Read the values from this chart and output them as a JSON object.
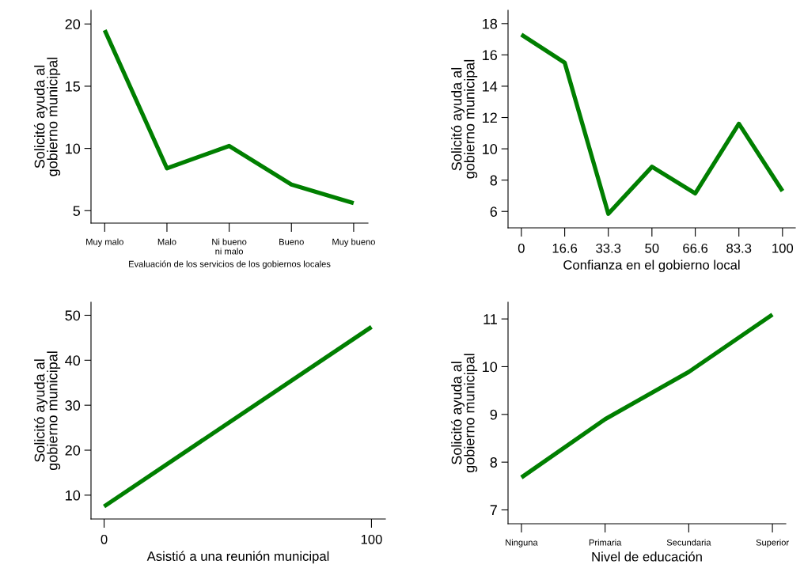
{
  "chart_data": [
    {
      "type": "line",
      "xlabel": "Evaluación de los servicios de los gobiernos locales",
      "ylabel": "Solicitó ayuda al\ngobierno municipal",
      "categories": [
        "Muy malo",
        "Malo",
        "Ni bueno\nni malo",
        "Bueno",
        "Muy bueno"
      ],
      "series": [
        {
          "color": "#007f00",
          "values": [
            19.5,
            8.4,
            10.2,
            7.1,
            5.6
          ]
        }
      ],
      "ylim": [
        4,
        21.1
      ],
      "yticks": [
        5,
        10,
        15,
        20
      ],
      "grid": false
    },
    {
      "type": "line",
      "xlabel": "Confianza en el gobierno local",
      "ylabel": "Solicitó ayuda al\ngobierno municipal",
      "x": [
        0,
        16.6,
        33.3,
        50,
        66.6,
        83.3,
        100
      ],
      "series": [
        {
          "color": "#007f00",
          "values": [
            17.3,
            15.5,
            5.85,
            8.85,
            7.15,
            11.6,
            7.3
          ]
        }
      ],
      "xlim": [
        -5.1,
        104.9
      ],
      "xticks": [
        0,
        16.6,
        33.3,
        50,
        66.6,
        83.3,
        100
      ],
      "ylim": [
        4.95,
        18.85
      ],
      "yticks": [
        6,
        8,
        10,
        12,
        14,
        16,
        18
      ],
      "grid": false
    },
    {
      "type": "line",
      "xlabel": "Asistió a una reunión municipal",
      "ylabel": "Solicitó ayuda al\ngobierno municipal",
      "x": [
        0,
        100
      ],
      "series": [
        {
          "color": "#007f00",
          "values": [
            7.5,
            47.4
          ]
        }
      ],
      "xlim": [
        -4.9,
        105.2
      ],
      "xticks": [
        0,
        100
      ],
      "ylim": [
        4.7,
        52.9
      ],
      "yticks": [
        10,
        20,
        30,
        40,
        50
      ],
      "grid": false
    },
    {
      "type": "line",
      "xlabel": "Nivel de educación",
      "ylabel": "Solicitó ayuda al\ngobierno municipal",
      "categories": [
        "Ninguna",
        "Primaria",
        "Secundaria",
        "Superior"
      ],
      "series": [
        {
          "color": "#007f00",
          "values": [
            7.68,
            8.9,
            9.89,
            11.09
          ]
        }
      ],
      "ylim": [
        6.71,
        11.35
      ],
      "yticks": [
        7,
        8,
        9,
        10,
        11
      ],
      "grid": false
    }
  ]
}
